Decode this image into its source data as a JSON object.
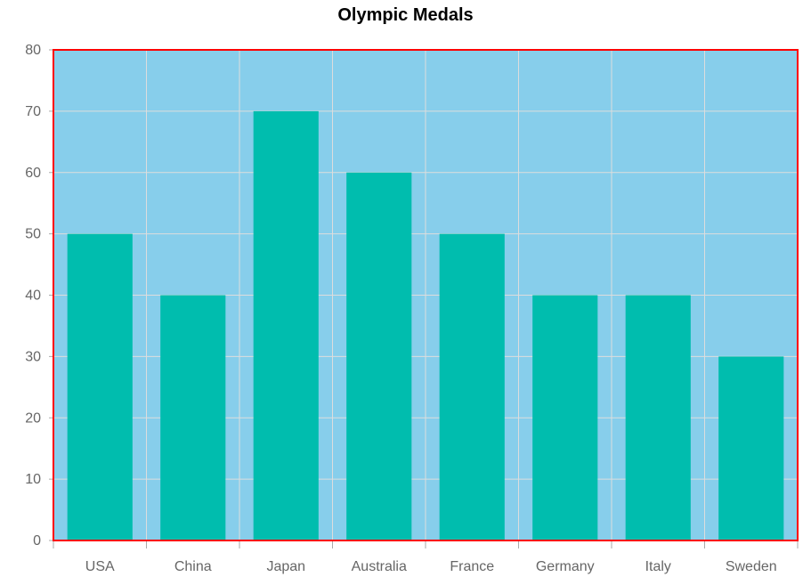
{
  "chart_data": {
    "type": "bar",
    "title": "Olympic Medals",
    "xlabel": "",
    "ylabel": "",
    "categories": [
      "USA",
      "China",
      "Japan",
      "Australia",
      "France",
      "Germany",
      "Italy",
      "Sweden"
    ],
    "values": [
      50,
      40,
      70,
      60,
      50,
      40,
      40,
      30
    ],
    "ylim": [
      0,
      80
    ],
    "y_ticks": [
      0,
      10,
      20,
      30,
      40,
      50,
      60,
      70,
      80
    ],
    "grid": true,
    "legend": "none"
  },
  "colors": {
    "plot_background": "#87CEEB",
    "bar_fill": "#00BDAE",
    "plot_border": "#FF0000",
    "grid_line": "#DDDDDD",
    "axis_line": "#AAAAAA",
    "tick_text": "#666666",
    "title_text": "#000000"
  }
}
